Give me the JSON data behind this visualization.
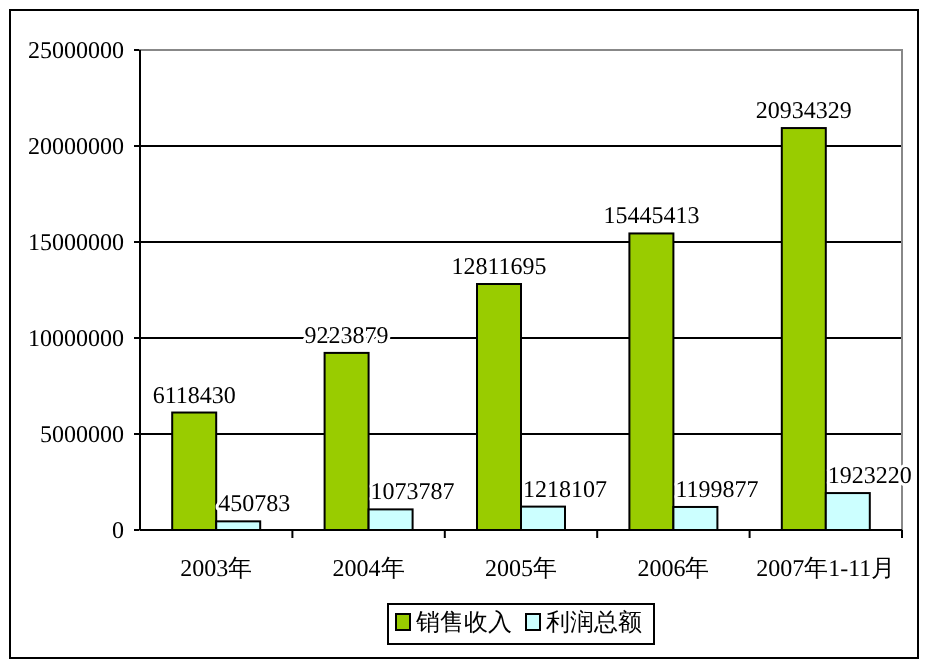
{
  "chart_data": {
    "type": "bar",
    "categories": [
      "2003年",
      "2004年",
      "2005年",
      "2006年",
      "2007年1-11月"
    ],
    "series": [
      {
        "name": "销售收入",
        "color": "#99cc00",
        "values": [
          6118430,
          9223879,
          12811695,
          15445413,
          20934329
        ]
      },
      {
        "name": "利润总额",
        "color": "#ccffff",
        "values": [
          450783,
          1073787,
          1218107,
          1199877,
          1923220
        ]
      }
    ],
    "ylim": [
      0,
      25000000
    ],
    "yticks": [
      0,
      5000000,
      10000000,
      15000000,
      20000000,
      25000000
    ],
    "grid": "y",
    "legend": "bottom",
    "data_labels": true
  }
}
